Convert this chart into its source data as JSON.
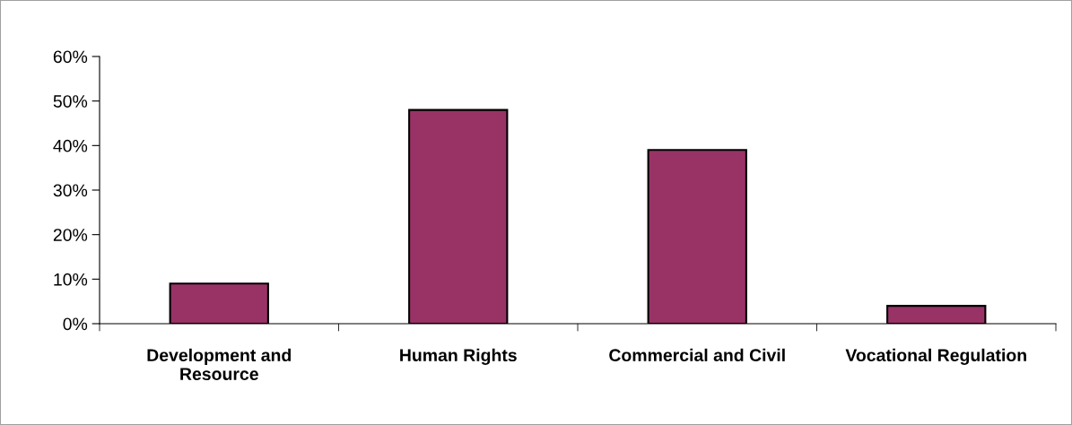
{
  "chart_data": {
    "type": "bar",
    "categories": [
      "Development and\nResource",
      "Human Rights",
      "Commercial and Civil",
      "Vocational Regulation"
    ],
    "values": [
      9,
      48,
      39,
      4
    ],
    "color": "#993366",
    "ylim": [
      0,
      60
    ],
    "yticks": [
      {
        "value": 0,
        "label": "0%"
      },
      {
        "value": 10,
        "label": "10%"
      },
      {
        "value": 20,
        "label": "20%"
      },
      {
        "value": 30,
        "label": "30%"
      },
      {
        "value": 40,
        "label": "40%"
      },
      {
        "value": 50,
        "label": "50%"
      },
      {
        "value": 60,
        "label": "60%"
      }
    ],
    "grid": false,
    "legend": false
  }
}
